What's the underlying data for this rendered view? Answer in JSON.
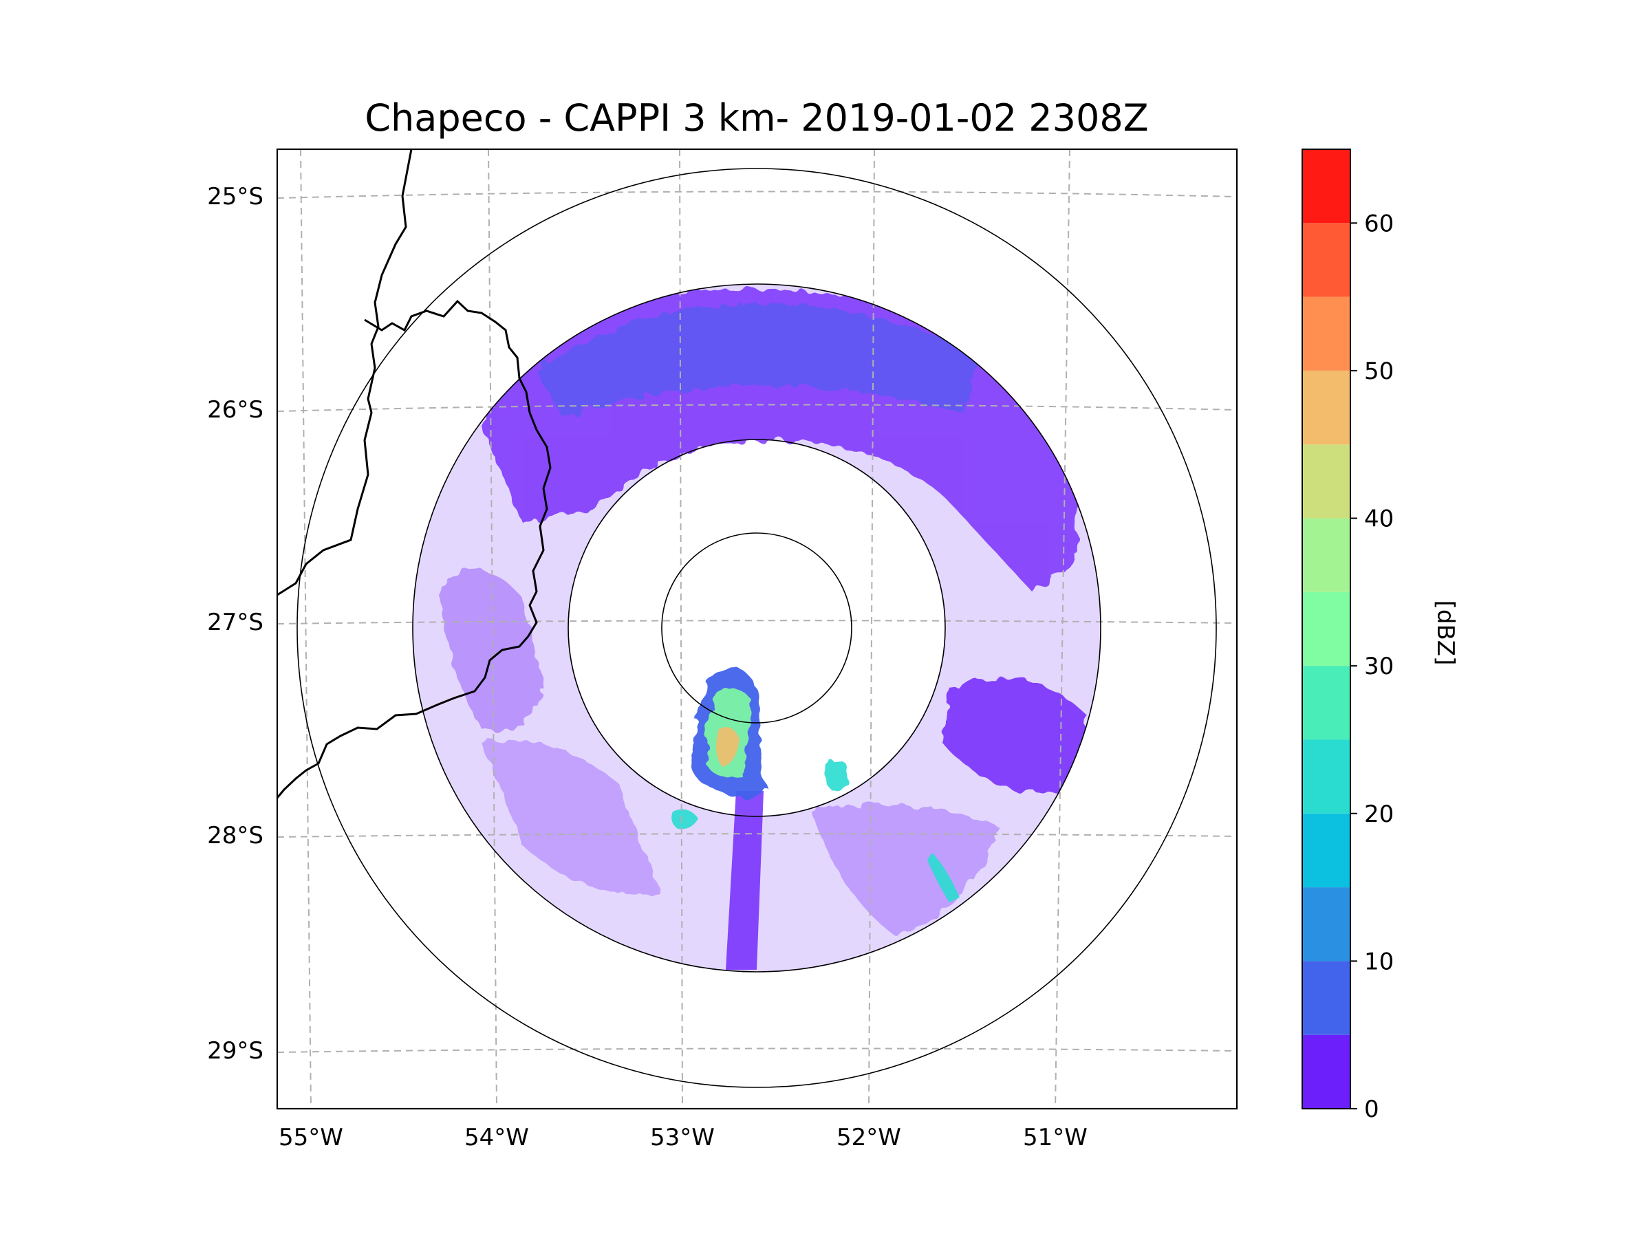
{
  "title": "Chapeco - CAPPI 3 km- 2019-01-02 2308Z",
  "map": {
    "lon_ticks": [
      "55°W",
      "54°W",
      "53°W",
      "52°W",
      "51°W"
    ],
    "lat_ticks": [
      "25°S",
      "26°S",
      "27°S",
      "28°S",
      "29°S"
    ],
    "radar_site": {
      "lon": -52.6,
      "lat": -27.03
    },
    "range_rings": 4,
    "gridlines": true,
    "border_color": "#000000",
    "grid_color": "#b0b0b0"
  },
  "colorbar": {
    "label": "[dBZ]",
    "tick_labels": [
      "0",
      "10",
      "20",
      "30",
      "40",
      "50",
      "60"
    ],
    "min": 0,
    "max": 65,
    "step": 5,
    "colors": [
      "#6c1ffb",
      "#4263ec",
      "#2a91e2",
      "#0cc0df",
      "#2adcd0",
      "#48edb8",
      "#80fca2",
      "#a3f393",
      "#cddf7d",
      "#f3bb6c",
      "#ff8f50",
      "#ff5a33",
      "#ff1a14"
    ]
  },
  "chart_data": {
    "type": "heatmap",
    "title": "Chapeco - CAPPI 3 km- 2019-01-02 2308Z",
    "xlabel": "",
    "ylabel": "",
    "xlim": [
      -55.2,
      -50.1
    ],
    "ylim": [
      -29.3,
      -24.8
    ],
    "value_label": "[dBZ]",
    "value_range": [
      0,
      65
    ],
    "features": [
      {
        "name": "strong-cell-south",
        "lon": -52.8,
        "lat": -27.6,
        "max_dbz": 45
      },
      {
        "name": "cell-southeast",
        "lon": -52.15,
        "lat": -27.7,
        "max_dbz": 30
      },
      {
        "name": "cell-far-southeast",
        "lon": -51.6,
        "lat": -28.2,
        "max_dbz": 25
      },
      {
        "name": "cell-southwest",
        "lon": -53.0,
        "lat": -27.95,
        "max_dbz": 25
      }
    ]
  }
}
